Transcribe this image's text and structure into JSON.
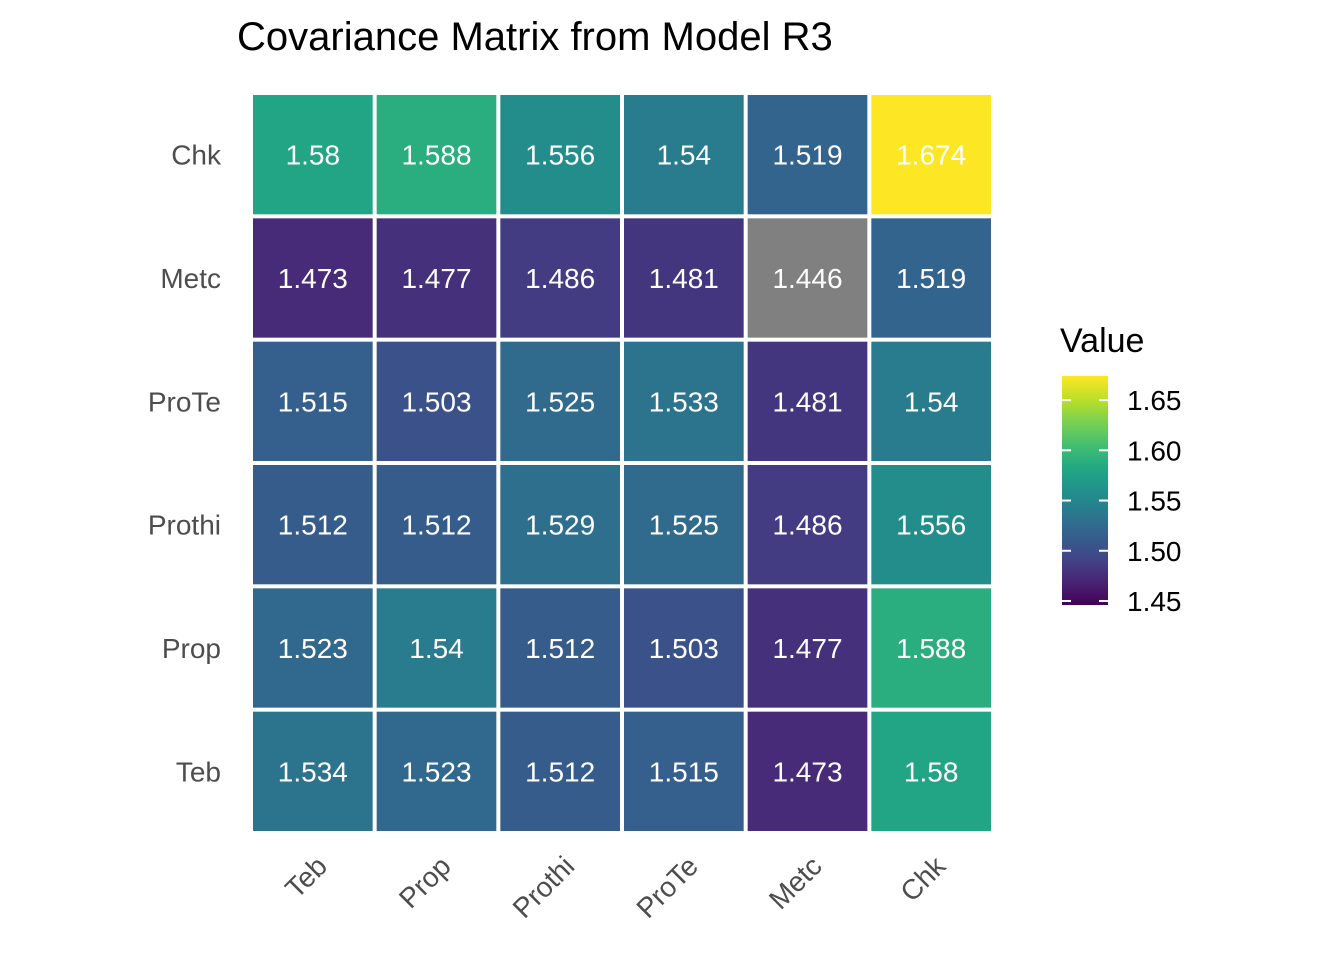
{
  "chart_data": {
    "type": "heatmap",
    "title": "Covariance Matrix from Model R3",
    "xlabel": "",
    "ylabel": "",
    "x_categories": [
      "Teb",
      "Prop",
      "Prothi",
      "ProTe",
      "Metc",
      "Chk"
    ],
    "y_categories": [
      "Teb",
      "Prop",
      "Prothi",
      "ProTe",
      "Metc",
      "Chk"
    ],
    "values": [
      [
        1.534,
        1.523,
        1.512,
        1.515,
        1.473,
        1.58
      ],
      [
        1.523,
        1.54,
        1.512,
        1.503,
        1.477,
        1.588
      ],
      [
        1.512,
        1.512,
        1.529,
        1.525,
        1.486,
        1.556
      ],
      [
        1.515,
        1.503,
        1.525,
        1.533,
        1.481,
        1.54
      ],
      [
        1.473,
        1.477,
        1.486,
        1.481,
        1.446,
        1.519
      ],
      [
        1.58,
        1.588,
        1.556,
        1.54,
        1.519,
        1.674
      ]
    ],
    "labels": [
      [
        "1.534",
        "1.523",
        "1.512",
        "1.515",
        "1.473",
        "1.58"
      ],
      [
        "1.523",
        "1.54",
        "1.512",
        "1.503",
        "1.477",
        "1.588"
      ],
      [
        "1.512",
        "1.512",
        "1.529",
        "1.525",
        "1.486",
        "1.556"
      ],
      [
        "1.515",
        "1.503",
        "1.525",
        "1.533",
        "1.481",
        "1.54"
      ],
      [
        "1.473",
        "1.477",
        "1.486",
        "1.481",
        "1.446",
        "1.519"
      ],
      [
        "1.58",
        "1.588",
        "1.556",
        "1.54",
        "1.519",
        "1.674"
      ]
    ],
    "colorscale": "viridis",
    "color_range": [
      1.446,
      1.674
    ],
    "na_cell": {
      "row": 4,
      "col": 4,
      "color": "#808080"
    },
    "legend": {
      "title": "Value",
      "ticks": [
        1.45,
        1.5,
        1.55,
        1.6,
        1.65
      ],
      "tick_labels": [
        "1.45",
        "1.50",
        "1.55",
        "1.60",
        "1.65"
      ],
      "placement": "right"
    },
    "grid": false
  }
}
